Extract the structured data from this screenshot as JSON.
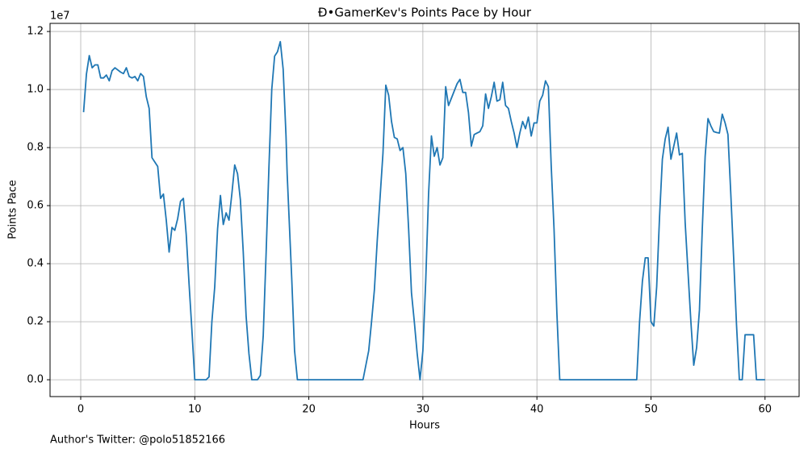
{
  "chart_data": {
    "type": "line",
    "title": "Ð•GamerKev's Points Pace by Hour",
    "x_label": "Hours",
    "y_label": "Points Pace",
    "y_offset_label": "1e7",
    "footnote": "Author's Twitter: @polo51852166",
    "grid": true,
    "xlim": [
      -2.69,
      62.99
    ],
    "ylim": [
      -0.058,
      1.228
    ],
    "xticks": [
      0,
      10,
      20,
      30,
      40,
      50,
      60
    ],
    "yticks": [
      {
        "value": 0,
        "label": "0.0"
      },
      {
        "value": 0.2,
        "label": "0.2"
      },
      {
        "value": 0.4,
        "label": "0.4"
      },
      {
        "value": 0.6,
        "label": "0.6"
      },
      {
        "value": 0.8,
        "label": "0.8"
      },
      {
        "value": 1,
        "label": "1.0"
      },
      {
        "value": 1.2,
        "label": "1.2"
      }
    ],
    "x": [
      0.25,
      0.5,
      0.75,
      1.0,
      1.25,
      1.5,
      1.75,
      2.0,
      2.25,
      2.5,
      2.75,
      3.0,
      3.5,
      3.75,
      4.0,
      4.25,
      4.5,
      4.75,
      5.0,
      5.25,
      5.5,
      5.75,
      6.0,
      6.25,
      6.5,
      6.75,
      7.0,
      7.25,
      7.5,
      7.75,
      8.0,
      8.25,
      8.5,
      8.75,
      9.0,
      9.25,
      9.5,
      9.75,
      10.0,
      11.0,
      11.25,
      11.5,
      11.75,
      12.0,
      12.25,
      12.5,
      12.75,
      13.0,
      13.25,
      13.5,
      13.75,
      14.0,
      14.25,
      14.5,
      14.75,
      15.0,
      15.5,
      15.75,
      16.0,
      16.25,
      16.5,
      16.75,
      17.0,
      17.25,
      17.5,
      17.75,
      18.0,
      18.1,
      18.5,
      18.75,
      19.0,
      24.75,
      25.25,
      25.5,
      25.75,
      26.0,
      26.25,
      26.5,
      26.75,
      27.0,
      27.25,
      27.5,
      27.75,
      28.0,
      28.25,
      28.5,
      28.75,
      29.0,
      29.25,
      29.5,
      29.75,
      30.0,
      30.25,
      30.5,
      30.75,
      31.0,
      31.25,
      31.5,
      31.75,
      32.0,
      32.25,
      32.5,
      32.75,
      33.0,
      33.25,
      33.5,
      33.75,
      34.0,
      34.25,
      34.5,
      34.75,
      35.0,
      35.25,
      35.5,
      35.75,
      36.0,
      36.25,
      36.5,
      36.75,
      37.0,
      37.25,
      37.5,
      37.75,
      38.0,
      38.25,
      38.5,
      38.75,
      39.0,
      39.25,
      39.5,
      39.75,
      40.0,
      40.25,
      40.5,
      40.75,
      41.0,
      41.25,
      41.5,
      41.75,
      42.0,
      48.75,
      49.0,
      49.25,
      49.5,
      49.75,
      50.0,
      50.25,
      50.5,
      50.75,
      51.0,
      51.25,
      51.5,
      51.75,
      52.0,
      52.25,
      52.5,
      52.75,
      53.0,
      53.25,
      53.5,
      53.75,
      54.0,
      54.25,
      54.5,
      54.75,
      55.0,
      55.25,
      55.5,
      55.75,
      56.0,
      56.25,
      56.5,
      56.75,
      57.0,
      57.25,
      57.5,
      57.75,
      58.0,
      58.25,
      58.5,
      58.75,
      59.0,
      59.25,
      60.0
    ],
    "series": [
      {
        "name": "Points Pace",
        "color": "#1f77b4",
        "values": [
          0.922,
          1.053,
          1.117,
          1.075,
          1.085,
          1.085,
          1.04,
          1.04,
          1.05,
          1.03,
          1.065,
          1.075,
          1.06,
          1.055,
          1.075,
          1.045,
          1.04,
          1.045,
          1.03,
          1.055,
          1.045,
          0.975,
          0.935,
          0.765,
          0.75,
          0.735,
          0.625,
          0.64,
          0.55,
          0.44,
          0.525,
          0.515,
          0.555,
          0.615,
          0.625,
          0.5,
          0.33,
          0.17,
          0,
          0,
          0.01,
          0.2,
          0.32,
          0.52,
          0.635,
          0.535,
          0.575,
          0.55,
          0.64,
          0.74,
          0.71,
          0.62,
          0.44,
          0.22,
          0.09,
          0,
          0,
          0.015,
          0.15,
          0.43,
          0.73,
          1.0,
          1.115,
          1.13,
          1.165,
          1.07,
          0.84,
          0.71,
          0.35,
          0.1,
          0,
          0,
          0.1,
          0.2,
          0.31,
          0.48,
          0.63,
          0.78,
          1.015,
          0.98,
          0.89,
          0.835,
          0.83,
          0.79,
          0.8,
          0.71,
          0.52,
          0.3,
          0.2,
          0.09,
          0,
          0.1,
          0.34,
          0.64,
          0.84,
          0.77,
          0.8,
          0.74,
          0.765,
          1.01,
          0.945,
          0.97,
          0.995,
          1.02,
          1.035,
          0.99,
          0.99,
          0.92,
          0.805,
          0.845,
          0.85,
          0.855,
          0.875,
          0.985,
          0.935,
          0.975,
          1.025,
          0.96,
          0.965,
          1.025,
          0.945,
          0.935,
          0.89,
          0.85,
          0.8,
          0.85,
          0.89,
          0.865,
          0.905,
          0.84,
          0.885,
          0.885,
          0.96,
          0.98,
          1.03,
          1.01,
          0.74,
          0.52,
          0.23,
          0,
          0,
          0.2,
          0.34,
          0.42,
          0.42,
          0.2,
          0.185,
          0.32,
          0.56,
          0.76,
          0.83,
          0.87,
          0.76,
          0.805,
          0.85,
          0.775,
          0.78,
          0.54,
          0.37,
          0.2,
          0.05,
          0.11,
          0.24,
          0.52,
          0.77,
          0.9,
          0.875,
          0.855,
          0.852,
          0.85,
          0.915,
          0.885,
          0.845,
          0.64,
          0.42,
          0.19,
          0,
          0,
          0.155,
          0.155,
          0.155,
          0.155,
          0,
          0
        ]
      }
    ]
  }
}
